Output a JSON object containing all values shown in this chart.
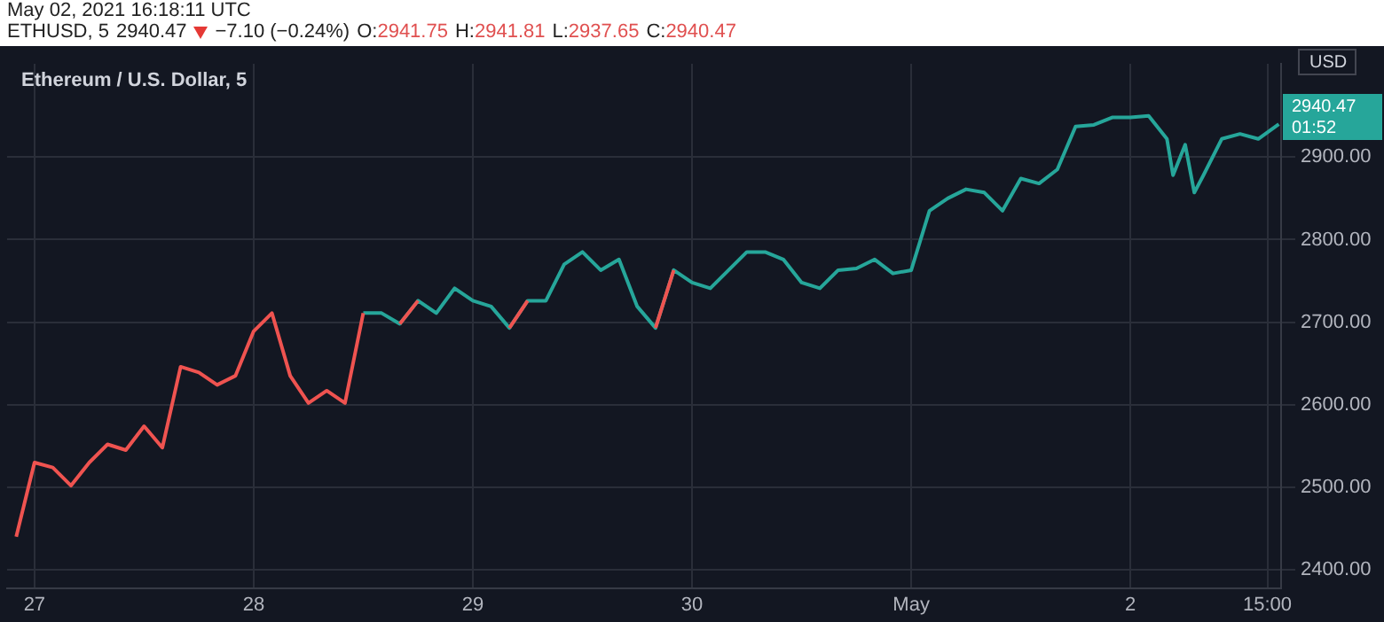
{
  "chart_data": {
    "type": "line",
    "title": "Ethereum / U.S. Dollar, 5",
    "annotations": [
      "May 02, 2021 16:18:11 UTC",
      "ETHUSD, 5",
      "2940.47",
      "−7.10 (−0.24%)",
      "O:2941.75",
      "H:2941.81",
      "L:2937.65",
      "C:2940.47",
      "2940.47",
      "01:52",
      "USD"
    ],
    "series": [
      {
        "color": "#ef5350",
        "values": [
          2440,
          2530,
          2524,
          2502,
          2530,
          2552,
          2545,
          2574,
          2548,
          2646,
          2639,
          2624,
          2635,
          2689,
          2711,
          2635,
          2602,
          2617,
          2602,
          2711,
          null,
          2698,
          2726,
          null,
          null,
          null,
          null,
          2693,
          2726,
          null,
          null,
          null,
          null,
          null,
          null,
          2693,
          2763,
          null,
          null,
          null,
          null,
          null,
          null,
          null,
          null,
          null,
          null,
          null,
          null,
          null,
          null,
          null,
          null,
          null,
          null,
          null,
          null,
          null,
          null,
          null,
          null,
          null,
          null,
          null,
          null,
          null,
          null,
          null,
          null,
          null,
          null,
          null
        ]
      },
      {
        "color": "#26a69a",
        "values": [
          null,
          null,
          null,
          null,
          null,
          null,
          null,
          null,
          null,
          null,
          null,
          null,
          null,
          null,
          null,
          null,
          null,
          null,
          null,
          2711,
          2711,
          2698,
          2726,
          2711,
          2741,
          2726,
          2719,
          2693,
          2726,
          2726,
          2770,
          2785,
          2763,
          2776,
          2719,
          2693,
          2763,
          2748,
          2741,
          2763,
          2785,
          2785,
          2776,
          2748,
          2741,
          2763,
          2765,
          2776,
          2759,
          2763,
          2835,
          2850,
          2861,
          2857,
          2835,
          2874,
          2868,
          2885,
          2937,
          2939,
          2948,
          2948,
          2950,
          2922,
          2878,
          2915,
          2857,
          2878,
          2922,
          2928,
          2922,
          2940
        ]
      }
    ],
    "x": [
      "2021-04-26T22:00",
      "2021-04-27T00:00",
      "2021-04-27T02:00",
      "2021-04-27T04:00",
      "2021-04-27T06:00",
      "2021-04-27T08:00",
      "2021-04-27T10:00",
      "2021-04-27T12:00",
      "2021-04-27T14:00",
      "2021-04-27T16:00",
      "2021-04-27T18:00",
      "2021-04-27T20:00",
      "2021-04-27T22:00",
      "2021-04-28T00:00",
      "2021-04-28T02:00",
      "2021-04-28T04:00",
      "2021-04-28T06:00",
      "2021-04-28T08:00",
      "2021-04-28T10:00",
      "2021-04-28T12:00",
      "2021-04-28T14:00",
      "2021-04-28T16:00",
      "2021-04-28T18:00",
      "2021-04-28T20:00",
      "2021-04-28T22:00",
      "2021-04-29T00:00",
      "2021-04-29T02:00",
      "2021-04-29T04:00",
      "2021-04-29T06:00",
      "2021-04-29T08:00",
      "2021-04-29T10:00",
      "2021-04-29T12:00",
      "2021-04-29T14:00",
      "2021-04-29T16:00",
      "2021-04-29T18:00",
      "2021-04-29T20:00",
      "2021-04-29T22:00",
      "2021-04-30T00:00",
      "2021-04-30T02:00",
      "2021-04-30T04:00",
      "2021-04-30T06:00",
      "2021-04-30T08:00",
      "2021-04-30T10:00",
      "2021-04-30T12:00",
      "2021-04-30T14:00",
      "2021-04-30T16:00",
      "2021-04-30T18:00",
      "2021-04-30T20:00",
      "2021-04-30T22:00",
      "2021-05-01T00:00",
      "2021-05-01T02:00",
      "2021-05-01T04:00",
      "2021-05-01T06:00",
      "2021-05-01T08:00",
      "2021-05-01T10:00",
      "2021-05-01T12:00",
      "2021-05-01T14:00",
      "2021-05-01T16:00",
      "2021-05-01T18:00",
      "2021-05-01T20:00",
      "2021-05-01T22:00",
      "2021-05-02T00:00",
      "2021-05-02T02:00",
      "2021-05-02T04:00",
      "2021-05-02T04:40",
      "2021-05-02T06:00",
      "2021-05-02T07:00",
      "2021-05-02T08:00",
      "2021-05-02T10:00",
      "2021-05-02T12:00",
      "2021-05-02T14:00",
      "2021-05-02T16:15"
    ],
    "xlim": [
      "2021-04-26T21:00",
      "2021-05-02T16:30"
    ],
    "xticks": [
      {
        "value": "2021-04-27",
        "label": "27"
      },
      {
        "value": "2021-04-28",
        "label": "28"
      },
      {
        "value": "2021-04-29",
        "label": "29"
      },
      {
        "value": "2021-04-30",
        "label": "30"
      },
      {
        "value": "2021-05-01",
        "label": "May"
      },
      {
        "value": "2021-05-02",
        "label": "2"
      },
      {
        "value": "2021-05-02T15:00",
        "label": "15:00"
      }
    ],
    "ylim": [
      2378,
      3013
    ],
    "yticks": [
      {
        "value": 2400,
        "label": "2400.00"
      },
      {
        "value": 2500,
        "label": "2500.00"
      },
      {
        "value": 2600,
        "label": "2600.00"
      },
      {
        "value": 2700,
        "label": "2700.00"
      },
      {
        "value": 2800,
        "label": "2800.00"
      },
      {
        "value": 2900,
        "label": "2900.00"
      }
    ],
    "grid": true,
    "legend": false,
    "marker": "none",
    "line_style": "solid"
  }
}
